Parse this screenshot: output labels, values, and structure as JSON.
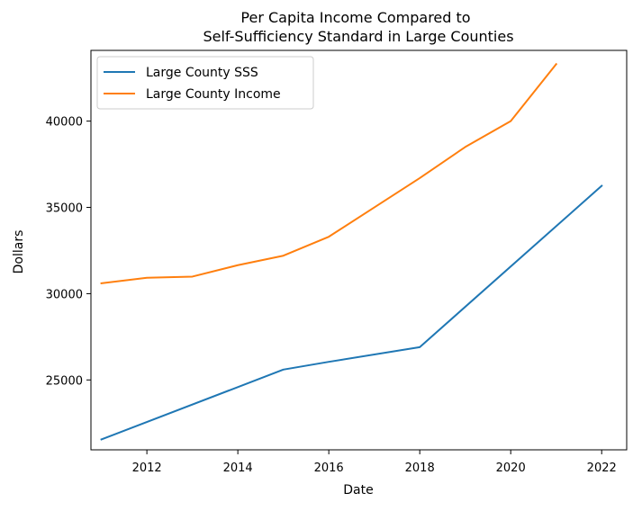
{
  "chart_data": {
    "type": "line",
    "title_lines": [
      "Per Capita Income Compared to",
      "Self-Sufficiency Standard in Large Counties"
    ],
    "xlabel": "Date",
    "ylabel": "Dollars",
    "xlim": [
      2010.77,
      2022.55
    ],
    "ylim": [
      20950,
      44100
    ],
    "xticks": [
      2012,
      2014,
      2016,
      2018,
      2020,
      2022
    ],
    "yticks": [
      25000,
      30000,
      35000,
      40000
    ],
    "grid": false,
    "legend_position": "upper-left",
    "series": [
      {
        "name": "Large County SSS",
        "color": "#1f77b4",
        "x": [
          2011,
          2015,
          2016,
          2018,
          2022
        ],
        "y": [
          21550,
          25600,
          26050,
          26900,
          36250
        ]
      },
      {
        "name": "Large County Income",
        "color": "#ff7f0e",
        "x": [
          2011,
          2012,
          2013,
          2014,
          2015,
          2016,
          2017,
          2018,
          2019,
          2020,
          2021
        ],
        "y": [
          30600,
          30920,
          30990,
          31650,
          32200,
          33300,
          35000,
          36700,
          38500,
          40000,
          43300
        ]
      }
    ]
  }
}
